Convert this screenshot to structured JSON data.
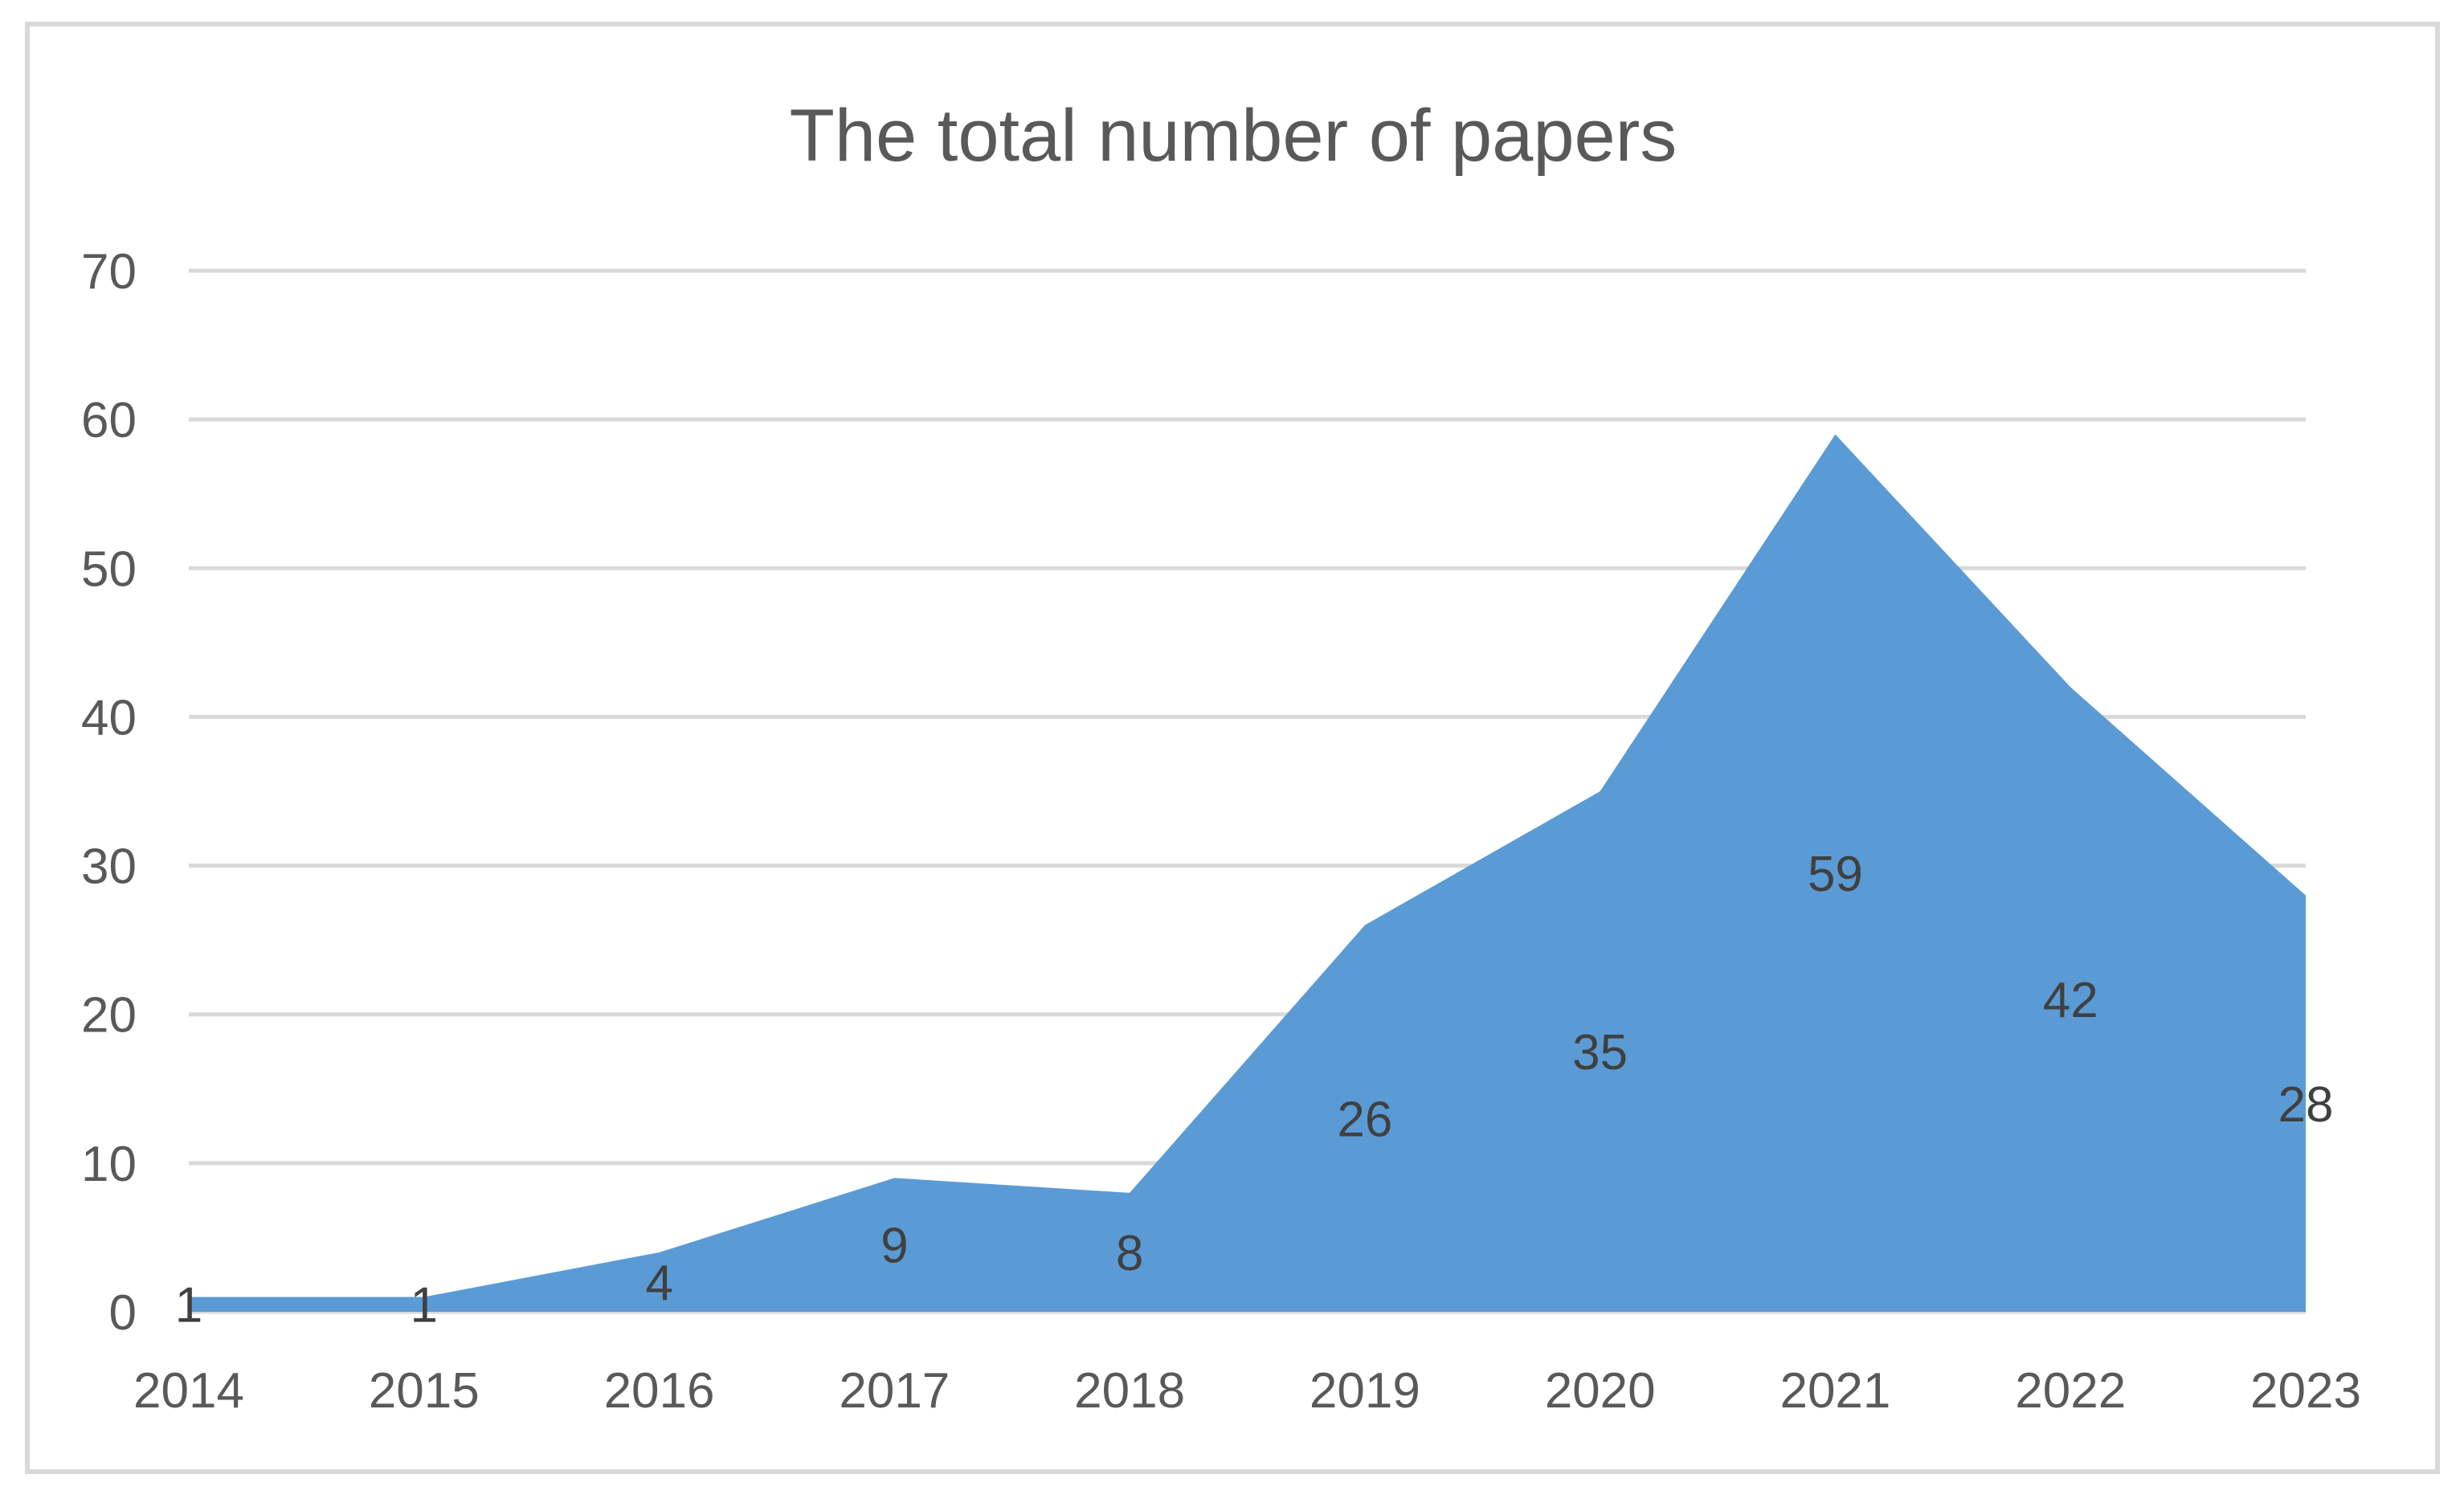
{
  "chart_data": {
    "type": "area",
    "title": "The total number of papers",
    "xlabel": "",
    "ylabel": "",
    "categories": [
      "2014",
      "2015",
      "2016",
      "2017",
      "2018",
      "2019",
      "2020",
      "2021",
      "2022",
      "2023"
    ],
    "values": [
      1,
      1,
      4,
      9,
      8,
      26,
      35,
      59,
      42,
      28
    ],
    "data_labels": [
      "1",
      "1",
      "4",
      "9",
      "8",
      "26",
      "35",
      "59",
      "42",
      "28"
    ],
    "y_ticks": [
      "0",
      "10",
      "20",
      "30",
      "40",
      "50",
      "60",
      "70"
    ],
    "ylim": [
      0,
      70
    ],
    "grid": true,
    "legend": "none",
    "colors": {
      "area": "#5b9bd5",
      "grid": "#d9d9d9",
      "frame": "#d9d9d9",
      "text": "#595959"
    }
  }
}
